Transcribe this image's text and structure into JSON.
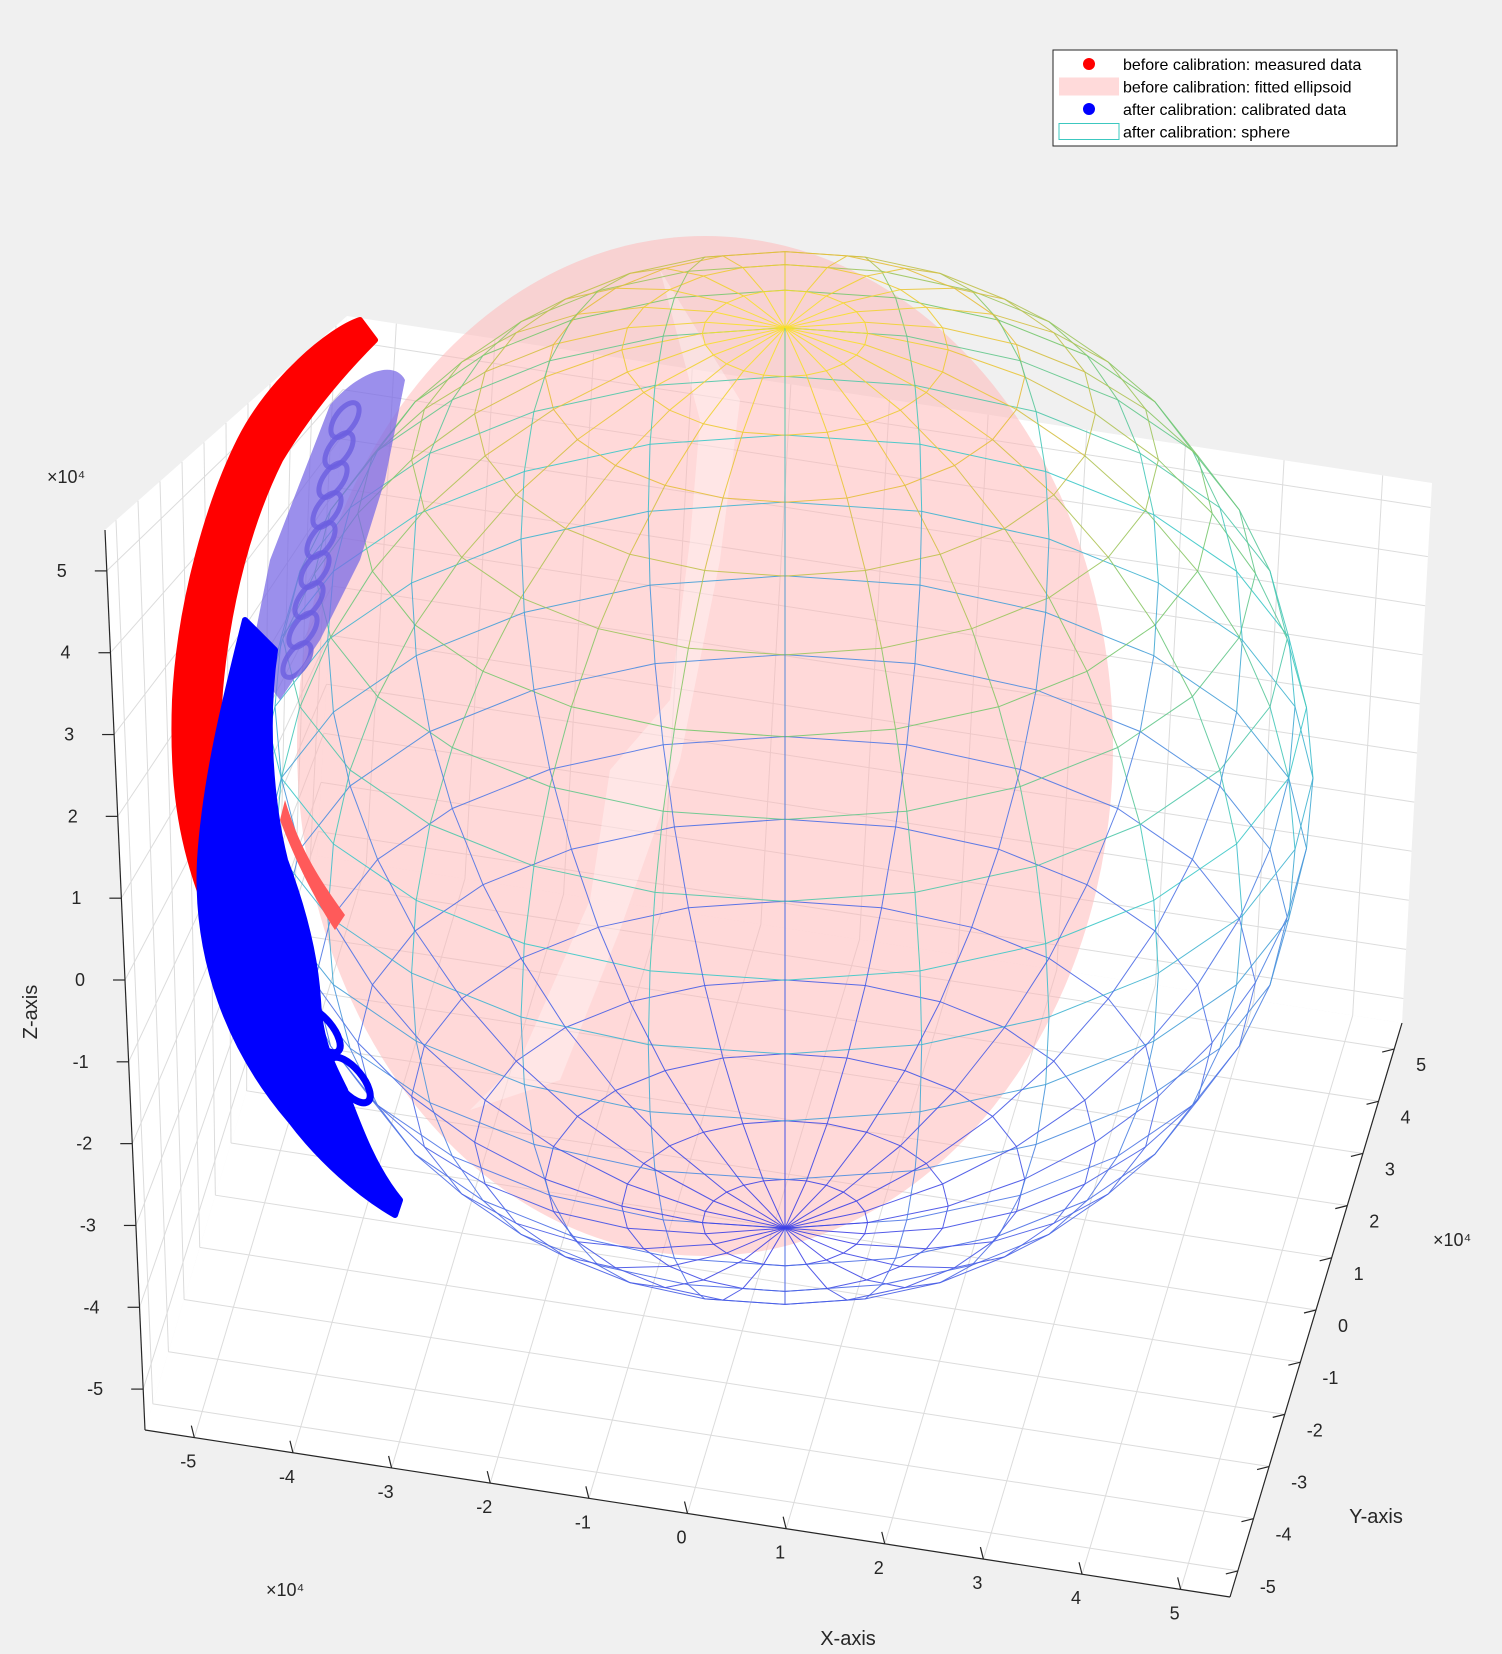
{
  "chart_data": {
    "type": "scatter3d",
    "title": "",
    "xlabel": "X-axis",
    "ylabel": "Y-axis",
    "zlabel": "Z-axis",
    "x_exponent_label": "×10⁴",
    "y_exponent_label": "×10⁴",
    "z_exponent_label": "×10⁴",
    "xlim": [
      -5.5,
      5.5
    ],
    "ylim": [
      -5.5,
      5.5
    ],
    "zlim": [
      -5.5,
      5.5
    ],
    "xticks": [
      "-5",
      "-4",
      "-3",
      "-2",
      "-1",
      "0",
      "1",
      "2",
      "3",
      "4",
      "5"
    ],
    "yticks": [
      "-5",
      "-4",
      "-3",
      "-2",
      "-1",
      "0",
      "1",
      "2",
      "3",
      "4",
      "5"
    ],
    "zticks": [
      "-5",
      "-4",
      "-3",
      "-2",
      "-1",
      "0",
      "1",
      "2",
      "3",
      "4",
      "5"
    ],
    "grid": true,
    "legend_position": "top-right",
    "legend": [
      {
        "label": "before calibration: measured data",
        "kind": "marker",
        "color": "#ff0000"
      },
      {
        "label": "before calibration: fitted ellipsoid",
        "kind": "patch",
        "color": "#ffdada"
      },
      {
        "label": "after calibration: calibrated data",
        "kind": "marker",
        "color": "#0000ff"
      },
      {
        "label": "after calibration: sphere",
        "kind": "patch-edge",
        "color": "#3cc8c0"
      }
    ],
    "series": [
      {
        "name": "before calibration: measured data",
        "color": "#ff0000"
      },
      {
        "name": "before calibration: fitted ellipsoid",
        "color": "#ffb4b4"
      },
      {
        "name": "after calibration: calibrated data",
        "color": "#0000ff"
      },
      {
        "name": "after calibration: sphere",
        "color": "#4060e0",
        "radius": 5
      }
    ]
  }
}
